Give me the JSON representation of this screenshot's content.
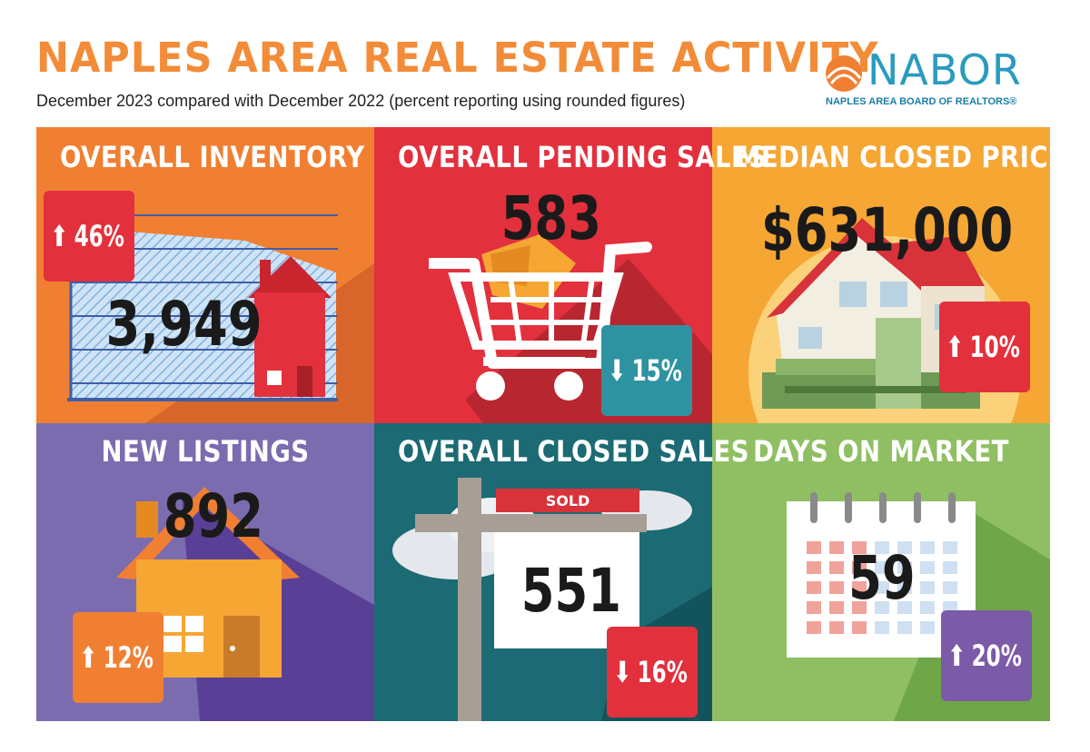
{
  "header": {
    "title": "NAPLES AREA REAL ESTATE ACTIVITY",
    "subtitle": "December 2023 compared with December 2022 (percent reporting using rounded figures)"
  },
  "logo": {
    "name": "NABOR",
    "tagline": "NAPLES AREA BOARD OF REALTORS®"
  },
  "tiles": [
    {
      "label": "OVERALL INVENTORY",
      "value": "3,949",
      "change": "46%",
      "direction": "up",
      "bg": "#f07f32",
      "badge": "#e3303d"
    },
    {
      "label": "OVERALL PENDING SALES",
      "value": "583",
      "change": "15%",
      "direction": "down",
      "bg": "#e3303d",
      "badge": "#2e93a0"
    },
    {
      "label": "MEDIAN CLOSED PRICE",
      "value": "$631,000",
      "change": "10%",
      "direction": "up",
      "bg": "#f6a633",
      "badge": "#e3303d"
    },
    {
      "label": "NEW LISTINGS",
      "value": "892",
      "change": "12%",
      "direction": "up",
      "bg": "#7b6cb0",
      "badge": "#f07f32"
    },
    {
      "label": "OVERALL CLOSED SALES",
      "value": "551",
      "change": "16%",
      "direction": "down",
      "bg": "#1c6a74",
      "badge": "#e3303d"
    },
    {
      "label": "DAYS ON MARKET",
      "value": "59",
      "change": "20%",
      "direction": "up",
      "bg": "#8fbf62",
      "badge": "#7b5aa8"
    }
  ],
  "sold_sign": "SOLD",
  "arrows": {
    "up": "⬆",
    "down": "⬇"
  }
}
